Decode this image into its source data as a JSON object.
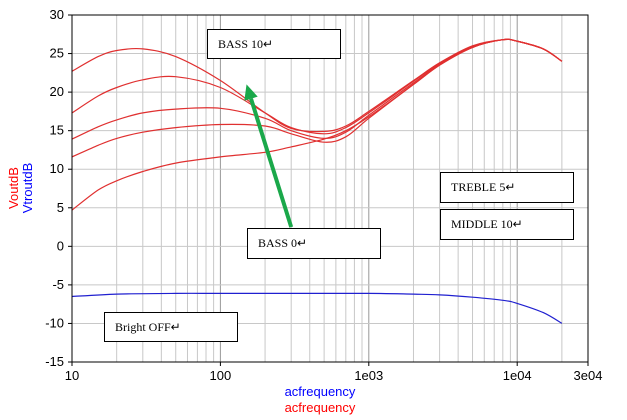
{
  "chart_data": {
    "type": "line",
    "x_scale": "log",
    "xlim": [
      10,
      30000
    ],
    "ylim": [
      -15,
      30
    ],
    "grid": true,
    "x_ticks": [
      {
        "value": 10,
        "label": "10"
      },
      {
        "value": 100,
        "label": "100"
      },
      {
        "value": 1000,
        "label": "1e03"
      },
      {
        "value": 10000,
        "label": "1e04"
      },
      {
        "value": 30000,
        "label": "3e04"
      }
    ],
    "y_ticks": [
      {
        "value": 30,
        "label": "30"
      },
      {
        "value": 25,
        "label": "25"
      },
      {
        "value": 20,
        "label": "20"
      },
      {
        "value": 15,
        "label": "15"
      },
      {
        "value": 10,
        "label": "10"
      },
      {
        "value": 5,
        "label": "5"
      },
      {
        "value": 0,
        "label": "0"
      },
      {
        "value": -5,
        "label": "-5"
      },
      {
        "value": -10,
        "label": "-10"
      },
      {
        "value": -15,
        "label": "-15"
      }
    ],
    "xlabel": [
      {
        "text": "acfrequency",
        "color": "#0000ff"
      },
      {
        "text": "acfrequency",
        "color": "#ff0000"
      }
    ],
    "ylabel": [
      {
        "text": "VoutdB",
        "color": "#ff0000"
      },
      {
        "text": "VtroutdB",
        "color": "#0000ff"
      }
    ],
    "series": [
      {
        "color": "#e03030",
        "points": [
          [
            10,
            22.7
          ],
          [
            15,
            24.6
          ],
          [
            20,
            25.4
          ],
          [
            30,
            25.6
          ],
          [
            50,
            24.6
          ],
          [
            100,
            21.5
          ],
          [
            200,
            17.3
          ],
          [
            300,
            15.3
          ],
          [
            500,
            14.9
          ],
          [
            700,
            15.6
          ],
          [
            1000,
            17.5
          ],
          [
            2000,
            21.5
          ],
          [
            3000,
            23.8
          ],
          [
            5000,
            26.0
          ],
          [
            8000,
            26.8
          ],
          [
            10000,
            26.6
          ],
          [
            15000,
            25.6
          ],
          [
            20000,
            24.0
          ]
        ]
      },
      {
        "color": "#e03030",
        "points": [
          [
            10,
            17.3
          ],
          [
            15,
            19.5
          ],
          [
            20,
            20.6
          ],
          [
            30,
            21.6
          ],
          [
            50,
            22.0
          ],
          [
            100,
            20.6
          ],
          [
            200,
            17.3
          ],
          [
            300,
            15.4
          ],
          [
            500,
            14.6
          ],
          [
            700,
            15.4
          ],
          [
            1000,
            17.3
          ],
          [
            2000,
            21.4
          ],
          [
            3000,
            23.7
          ],
          [
            5000,
            25.9
          ],
          [
            8000,
            26.8
          ],
          [
            10000,
            26.6
          ],
          [
            15000,
            25.6
          ],
          [
            20000,
            24.0
          ]
        ]
      },
      {
        "color": "#e03030",
        "points": [
          [
            10,
            13.9
          ],
          [
            15,
            15.5
          ],
          [
            20,
            16.4
          ],
          [
            30,
            17.3
          ],
          [
            50,
            17.8
          ],
          [
            100,
            17.9
          ],
          [
            200,
            16.6
          ],
          [
            300,
            15.0
          ],
          [
            500,
            14.0
          ],
          [
            700,
            14.8
          ],
          [
            1000,
            17.0
          ],
          [
            2000,
            21.2
          ],
          [
            3000,
            23.6
          ],
          [
            5000,
            25.8
          ],
          [
            8000,
            26.8
          ],
          [
            10000,
            26.6
          ],
          [
            15000,
            25.6
          ],
          [
            20000,
            24.0
          ]
        ]
      },
      {
        "color": "#e03030",
        "points": [
          [
            10,
            11.6
          ],
          [
            15,
            13.1
          ],
          [
            20,
            14.0
          ],
          [
            30,
            14.8
          ],
          [
            50,
            15.4
          ],
          [
            100,
            15.8
          ],
          [
            200,
            15.6
          ],
          [
            300,
            14.6
          ],
          [
            500,
            13.5
          ],
          [
            700,
            14.2
          ],
          [
            1000,
            16.6
          ],
          [
            2000,
            21.0
          ],
          [
            3000,
            23.5
          ],
          [
            5000,
            25.8
          ],
          [
            8000,
            26.8
          ],
          [
            10000,
            26.6
          ],
          [
            15000,
            25.6
          ],
          [
            20000,
            24.0
          ]
        ]
      },
      {
        "color": "#e03030",
        "points": [
          [
            10,
            4.7
          ],
          [
            15,
            7.3
          ],
          [
            20,
            8.5
          ],
          [
            30,
            9.7
          ],
          [
            50,
            10.8
          ],
          [
            100,
            11.6
          ],
          [
            200,
            12.2
          ],
          [
            300,
            12.9
          ],
          [
            500,
            13.9
          ],
          [
            700,
            15.0
          ],
          [
            1000,
            16.8
          ],
          [
            2000,
            21.0
          ],
          [
            3000,
            23.5
          ],
          [
            5000,
            25.8
          ],
          [
            8000,
            26.8
          ],
          [
            10000,
            26.6
          ],
          [
            15000,
            25.6
          ],
          [
            20000,
            24.0
          ]
        ]
      },
      {
        "color": "#2020d0",
        "points": [
          [
            10,
            -6.5
          ],
          [
            20,
            -6.2
          ],
          [
            50,
            -6.1
          ],
          [
            100,
            -6.1
          ],
          [
            300,
            -6.1
          ],
          [
            1000,
            -6.1
          ],
          [
            2000,
            -6.2
          ],
          [
            3000,
            -6.3
          ],
          [
            5000,
            -6.6
          ],
          [
            8000,
            -7.0
          ],
          [
            10000,
            -7.4
          ],
          [
            15000,
            -8.6
          ],
          [
            20000,
            -10.0
          ]
        ]
      }
    ],
    "annotations": {
      "arrow": {
        "from": [
          300,
          2.5
        ],
        "to": [
          150,
          21.0
        ],
        "color": "#1aa84a"
      },
      "bass10": "BASS 10↵",
      "bass0": "BASS 0↵",
      "treble": "TREBLE 5↵",
      "middle": "MIDDLE 10↵",
      "bright": "Bright OFF↵"
    }
  }
}
